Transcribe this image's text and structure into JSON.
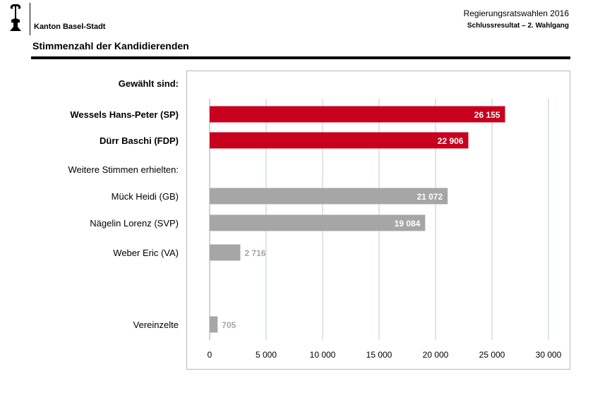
{
  "header": {
    "canton": "Kanton Basel-Stadt",
    "election": "Regierungsratswahlen 2016",
    "result": "Schlussresultat – 2. Wahlgang",
    "section_title": "Stimmenzahl der Kandidierenden"
  },
  "colors": {
    "elected": "#c8001e",
    "other": "#a6a6a6",
    "grid": "#b9cfcb",
    "frame": "#b8b8b8"
  },
  "chart_data": {
    "type": "bar",
    "orientation": "horizontal",
    "title": "Stimmenzahl der Kandidierenden",
    "xlim": [
      0,
      30000
    ],
    "ticks": [
      0,
      5000,
      10000,
      15000,
      20000,
      25000,
      30000
    ],
    "tick_labels": [
      "0",
      "5 000",
      "10 000",
      "15 000",
      "20 000",
      "25 000",
      "30 000"
    ],
    "grid": "vertical",
    "rows": [
      {
        "label": "Gewählt sind:",
        "kind": "heading",
        "bold": true
      },
      {
        "label": "Wessels Hans-Peter (SP)",
        "value": 26155,
        "value_label": "26 155",
        "group": "elected",
        "bold": true
      },
      {
        "label": "Dürr Baschi (FDP)",
        "value": 22906,
        "value_label": "22 906",
        "group": "elected",
        "bold": true
      },
      {
        "label": "Weitere Stimmen erhielten:",
        "kind": "heading",
        "bold": false
      },
      {
        "label": "Mück Heidi (GB)",
        "value": 21072,
        "value_label": "21 072",
        "group": "other",
        "bold": false
      },
      {
        "label": "Nägelin Lorenz (SVP)",
        "value": 19084,
        "value_label": "19 084",
        "group": "other",
        "bold": false
      },
      {
        "label": "Weber Eric (VA)",
        "value": 2716,
        "value_label": "2 716",
        "group": "other",
        "bold": false
      },
      {
        "label": "Vereinzelte",
        "value": 705,
        "value_label": "705",
        "group": "other",
        "bold": false
      }
    ]
  }
}
